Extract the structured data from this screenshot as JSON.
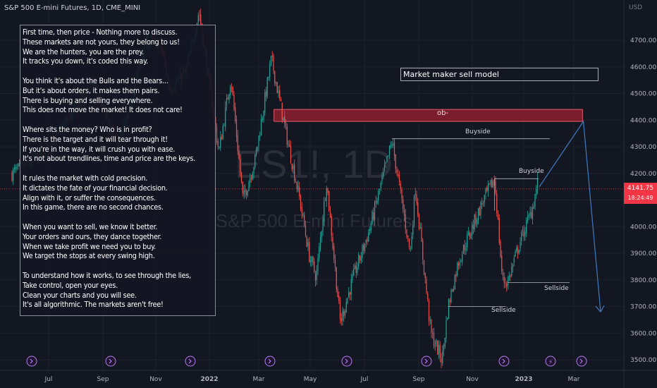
{
  "header": {
    "title": "S&P 500 E-mini Futures, 1D, CME_MINI",
    "currency": "USD"
  },
  "watermark": {
    "symbol": "ES1!, 1D",
    "name": "S&P 500 E-mini Futures"
  },
  "note": {
    "lines": [
      "First time, then price - Nothing more to discuss.",
      "These markets are not yours, they belong to us!",
      "We are the hunters, you are the prey.",
      "It tracks you down, it's coded this way.",
      "",
      "You think it's about the Bulls and the Bears...",
      "But it's about orders, it makes them pairs.",
      "There is buying and selling everywhere.",
      "This does not move the market! It does not care!",
      "",
      "Where sits the money? Who is in profit?",
      "There is the target and it will tear through it!",
      "If you're in the way, it will crush you with ease.",
      "It's not about trendlines, time and price are the keys.",
      "",
      "It rules the market with cold precision.",
      "It dictates the fate of your financial decision.",
      "Align with it, or suffer the consequences.",
      "In this game, there are no second chances.",
      "",
      "When you want to sell, we know it better.",
      "Your orders and ours, they dance together.",
      "When we take profit we need you to buy.",
      "We target the stops at every swing high.",
      "",
      "To understand how it works, to see through the lies,",
      "Take control, open your eyes.",
      "Clean your charts and you will see.",
      "It's all algorithmic. The markets aren't free!"
    ]
  },
  "annotations": {
    "model_title": "Market maker sell model",
    "ob_label": "ob-",
    "buyside_1": "Buyside",
    "buyside_2": "Buyside",
    "sellside_1": "Sellside",
    "sellside_2": "Sellside"
  },
  "last_price": {
    "price": "4141.75",
    "countdown": "18:24:49"
  },
  "colors": {
    "up": "#26a69a",
    "down": "#ef5350",
    "ob_zone": "#7a1d2c",
    "arrow": "#3d74b8"
  },
  "chart_data": {
    "type": "candlestick",
    "title": "S&P 500 E-mini Futures, 1D, CME_MINI",
    "ylabel": "USD",
    "ylim": [
      3480,
      4850
    ],
    "y_ticks": [
      3500,
      3600,
      3700,
      3800,
      3900,
      4000,
      4100,
      4200,
      4300,
      4400,
      4500,
      4600,
      4700
    ],
    "x_ticks": [
      "Jul",
      "Sep",
      "Nov",
      "2022",
      "Mar",
      "May",
      "Jul",
      "Sep",
      "Nov",
      "2023",
      "Mar"
    ],
    "path": [
      [
        "2021-06-01",
        4200
      ],
      [
        "2021-06-20",
        4235
      ],
      [
        "2021-07-15",
        4300
      ],
      [
        "2021-08-05",
        4400
      ],
      [
        "2021-08-30",
        4520
      ],
      [
        "2021-09-05",
        4530
      ],
      [
        "2021-09-30",
        4300
      ],
      [
        "2021-10-10",
        4370
      ],
      [
        "2021-11-03",
        4700
      ],
      [
        "2021-11-20",
        4690
      ],
      [
        "2021-12-01",
        4520
      ],
      [
        "2021-12-20",
        4580
      ],
      [
        "2022-01-04",
        4810
      ],
      [
        "2022-01-27",
        4280
      ],
      [
        "2022-02-10",
        4560
      ],
      [
        "2022-02-24",
        4100
      ],
      [
        "2022-03-10",
        4250
      ],
      [
        "2022-03-29",
        4630
      ],
      [
        "2022-04-15",
        4350
      ],
      [
        "2022-05-01",
        4100
      ],
      [
        "2022-05-12",
        3890
      ],
      [
        "2022-05-20",
        3810
      ],
      [
        "2022-06-01",
        4170
      ],
      [
        "2022-06-17",
        3640
      ],
      [
        "2022-07-01",
        3800
      ],
      [
        "2022-07-20",
        3980
      ],
      [
        "2022-08-16",
        4320
      ],
      [
        "2022-09-06",
        3900
      ],
      [
        "2022-09-12",
        4150
      ],
      [
        "2022-09-30",
        3600
      ],
      [
        "2022-10-13",
        3500
      ],
      [
        "2022-10-20",
        3700
      ],
      [
        "2022-11-01",
        3870
      ],
      [
        "2022-11-30",
        4100
      ],
      [
        "2022-12-13",
        4180
      ],
      [
        "2022-12-22",
        3800
      ],
      [
        "2022-12-28",
        3790
      ],
      [
        "2023-01-10",
        3930
      ],
      [
        "2023-01-25",
        4060
      ],
      [
        "2023-02-02",
        4180
      ]
    ],
    "last_price": 4141.75,
    "levels": [
      {
        "name": "ob-",
        "type": "zone",
        "from": 4395,
        "to": 4440,
        "start": "2022-04-01",
        "end": "2023-03-25"
      },
      {
        "name": "Buyside",
        "type": "level",
        "price": 4330,
        "start": "2022-08-16",
        "end": "2023-02-15"
      },
      {
        "name": "Buyside",
        "type": "level",
        "price": 4180,
        "start": "2022-12-13",
        "end": "2023-02-02"
      },
      {
        "name": "Sellside",
        "type": "level",
        "price": 3790,
        "start": "2022-12-28",
        "end": "2023-03-10"
      },
      {
        "name": "Sellside",
        "type": "level",
        "price": 3700,
        "start": "2022-10-20",
        "end": "2022-12-26"
      }
    ],
    "projection": [
      [
        "2023-02-03",
        4150
      ],
      [
        "2023-03-26",
        4395
      ],
      [
        "2023-04-15",
        3680
      ]
    ]
  }
}
